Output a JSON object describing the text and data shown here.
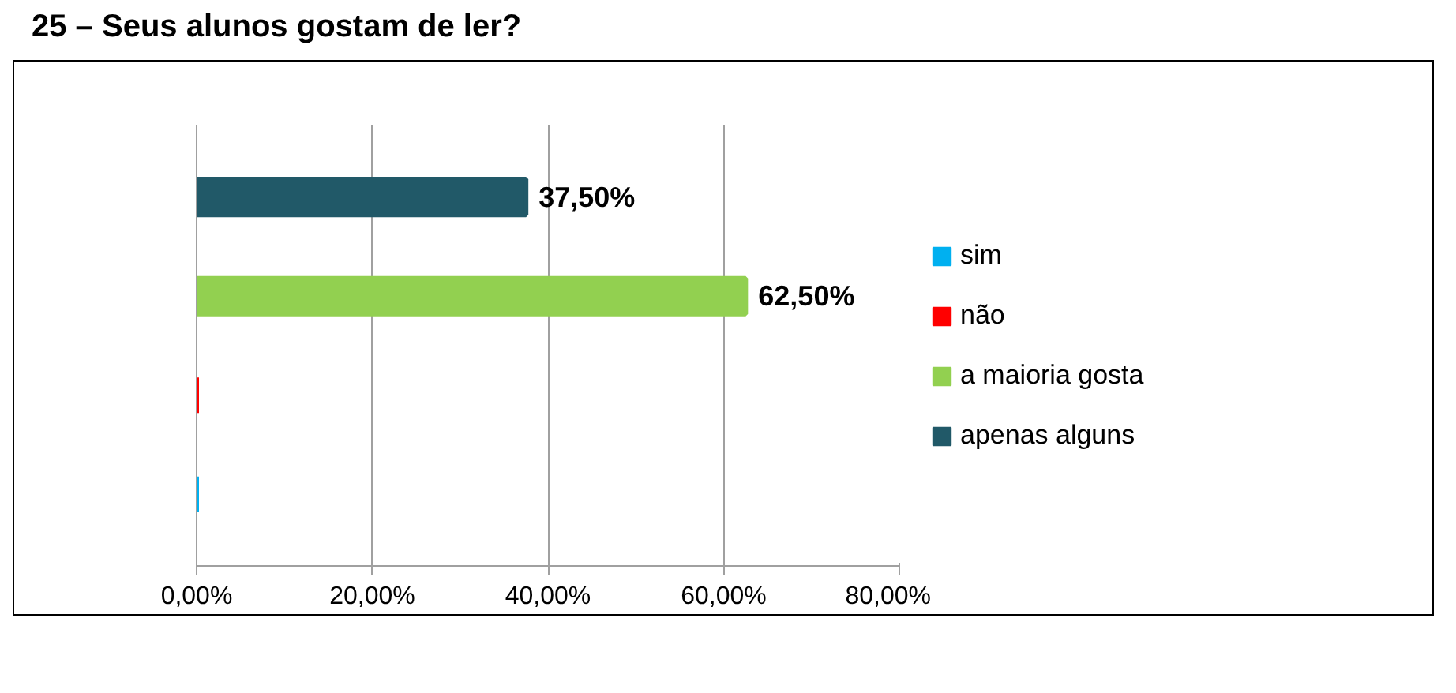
{
  "chart_data": {
    "type": "bar",
    "title": "25 – Seus alunos gostam de ler?",
    "orientation": "horizontal",
    "categories": [
      null
    ],
    "series": [
      {
        "name": "sim",
        "color": "#00b0f0",
        "values": [
          0
        ],
        "value_labels": [
          null
        ]
      },
      {
        "name": "não",
        "color": "#ff0000",
        "values": [
          0
        ],
        "value_labels": [
          null
        ]
      },
      {
        "name": "a maioria gosta",
        "color": "#92d050",
        "values": [
          62.5
        ],
        "value_labels": [
          "62,50%"
        ]
      },
      {
        "name": "apenas alguns",
        "color": "#215968",
        "values": [
          37.5
        ],
        "value_labels": [
          "37,50%"
        ]
      }
    ],
    "xlim": [
      0,
      80
    ],
    "xticks": [
      {
        "value": 0,
        "label": "0,00%"
      },
      {
        "value": 20,
        "label": "20,00%"
      },
      {
        "value": 40,
        "label": "40,00%"
      },
      {
        "value": 60,
        "label": "60,00%"
      },
      {
        "value": 80,
        "label": "80,00%"
      }
    ],
    "grid": "x",
    "legend": "right",
    "tick_labels": "x"
  }
}
